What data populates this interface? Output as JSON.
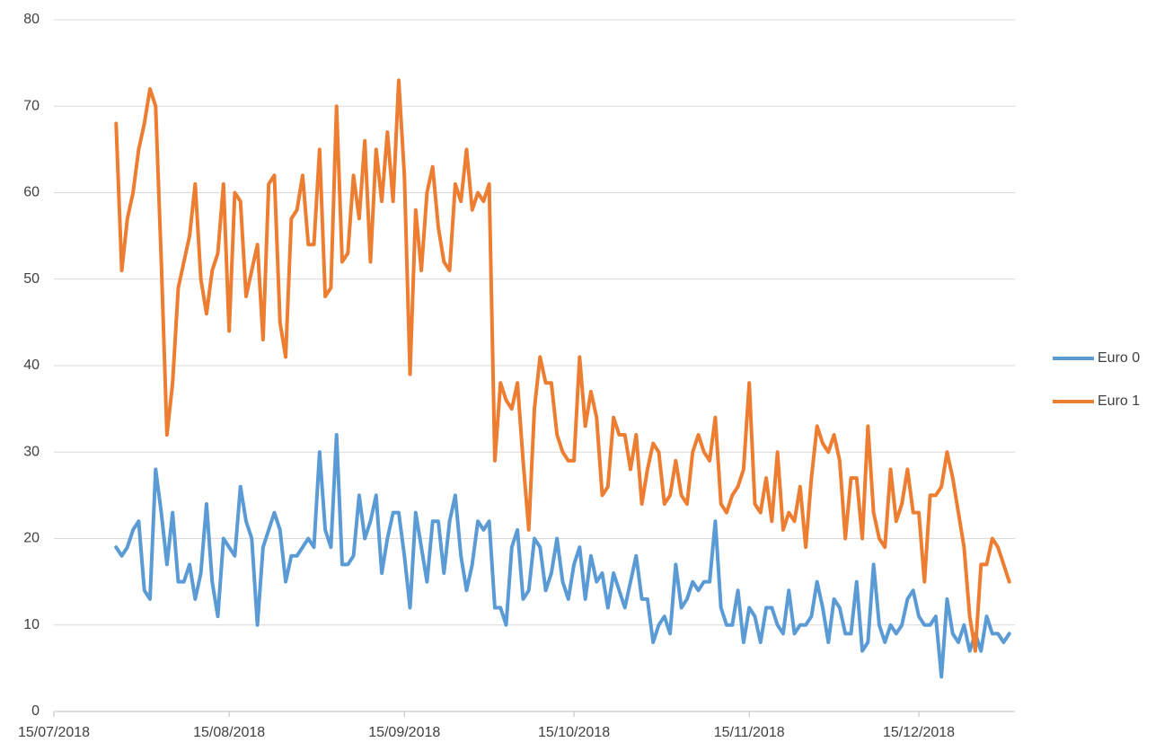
{
  "chart_data": {
    "type": "line",
    "x": [
      "2018-07-26",
      "2018-07-27",
      "2018-07-28",
      "2018-07-29",
      "2018-07-30",
      "2018-07-31",
      "2018-08-01",
      "2018-08-02",
      "2018-08-03",
      "2018-08-04",
      "2018-08-05",
      "2018-08-06",
      "2018-08-07",
      "2018-08-08",
      "2018-08-09",
      "2018-08-10",
      "2018-08-11",
      "2018-08-12",
      "2018-08-13",
      "2018-08-14",
      "2018-08-15",
      "2018-08-16",
      "2018-08-17",
      "2018-08-18",
      "2018-08-19",
      "2018-08-20",
      "2018-08-21",
      "2018-08-22",
      "2018-08-23",
      "2018-08-24",
      "2018-08-25",
      "2018-08-26",
      "2018-08-27",
      "2018-08-28",
      "2018-08-29",
      "2018-08-30",
      "2018-08-31",
      "2018-09-01",
      "2018-09-02",
      "2018-09-03",
      "2018-09-04",
      "2018-09-05",
      "2018-09-06",
      "2018-09-07",
      "2018-09-08",
      "2018-09-09",
      "2018-09-10",
      "2018-09-11",
      "2018-09-12",
      "2018-09-13",
      "2018-09-14",
      "2018-09-15",
      "2018-09-16",
      "2018-09-17",
      "2018-09-18",
      "2018-09-19",
      "2018-09-20",
      "2018-09-21",
      "2018-09-22",
      "2018-09-23",
      "2018-09-24",
      "2018-09-25",
      "2018-09-26",
      "2018-09-27",
      "2018-09-28",
      "2018-09-29",
      "2018-09-30",
      "2018-10-01",
      "2018-10-02",
      "2018-10-03",
      "2018-10-04",
      "2018-10-05",
      "2018-10-06",
      "2018-10-07",
      "2018-10-08",
      "2018-10-09",
      "2018-10-10",
      "2018-10-11",
      "2018-10-12",
      "2018-10-13",
      "2018-10-14",
      "2018-10-15",
      "2018-10-16",
      "2018-10-17",
      "2018-10-18",
      "2018-10-19",
      "2018-10-20",
      "2018-10-21",
      "2018-10-22",
      "2018-10-23",
      "2018-10-24",
      "2018-10-25",
      "2018-10-26",
      "2018-10-27",
      "2018-10-28",
      "2018-10-29",
      "2018-10-30",
      "2018-10-31",
      "2018-11-01",
      "2018-11-02",
      "2018-11-03",
      "2018-11-04",
      "2018-11-05",
      "2018-11-06",
      "2018-11-07",
      "2018-11-08",
      "2018-11-09",
      "2018-11-10",
      "2018-11-11",
      "2018-11-12",
      "2018-11-13",
      "2018-11-14",
      "2018-11-15",
      "2018-11-16",
      "2018-11-17",
      "2018-11-18",
      "2018-11-19",
      "2018-11-20",
      "2018-11-21",
      "2018-11-22",
      "2018-11-23",
      "2018-11-24",
      "2018-11-25",
      "2018-11-26",
      "2018-11-27",
      "2018-11-28",
      "2018-11-29",
      "2018-11-30",
      "2018-12-01",
      "2018-12-02",
      "2018-12-03",
      "2018-12-04",
      "2018-12-05",
      "2018-12-06",
      "2018-12-07",
      "2018-12-08",
      "2018-12-09",
      "2018-12-10",
      "2018-12-11",
      "2018-12-12",
      "2018-12-13",
      "2018-12-14",
      "2018-12-15",
      "2018-12-16",
      "2018-12-17",
      "2018-12-18",
      "2018-12-19",
      "2018-12-20",
      "2018-12-21",
      "2018-12-22",
      "2018-12-23",
      "2018-12-24",
      "2018-12-25",
      "2018-12-26",
      "2018-12-27",
      "2018-12-28",
      "2018-12-29",
      "2018-12-30",
      "2018-12-31"
    ],
    "series": [
      {
        "name": "Euro 0",
        "color": "#5b9bd5",
        "values": [
          19,
          18,
          19,
          21,
          22,
          14,
          13,
          28,
          23,
          17,
          23,
          15,
          15,
          17,
          13,
          16,
          24,
          15,
          11,
          20,
          19,
          18,
          26,
          22,
          20,
          10,
          19,
          21,
          23,
          21,
          15,
          18,
          18,
          19,
          20,
          19,
          30,
          21,
          19,
          32,
          17,
          17,
          18,
          25,
          20,
          22,
          25,
          16,
          20,
          23,
          23,
          18,
          12,
          23,
          19,
          15,
          22,
          22,
          16,
          22,
          25,
          18,
          14,
          17,
          22,
          21,
          22,
          12,
          12,
          10,
          19,
          21,
          13,
          14,
          20,
          19,
          14,
          16,
          20,
          15,
          13,
          17,
          19,
          13,
          18,
          15,
          16,
          12,
          16,
          14,
          12,
          15,
          18,
          13,
          13,
          8,
          10,
          11,
          9,
          17,
          12,
          13,
          15,
          14,
          15,
          15,
          22,
          12,
          10,
          10,
          14,
          8,
          12,
          11,
          8,
          12,
          12,
          10,
          9,
          14,
          9,
          10,
          10,
          11,
          15,
          12,
          8,
          13,
          12,
          9,
          9,
          15,
          7,
          8,
          17,
          10,
          8,
          10,
          9,
          10,
          13,
          14,
          11,
          10,
          10,
          11,
          4,
          13,
          9,
          8,
          10,
          7,
          9,
          7,
          11,
          9,
          9,
          8,
          9
        ]
      },
      {
        "name": "Euro 1",
        "color": "#ed7d31",
        "values": [
          68,
          51,
          57,
          60,
          65,
          68,
          72,
          70,
          52,
          32,
          38,
          49,
          52,
          55,
          61,
          50,
          46,
          51,
          53,
          61,
          44,
          60,
          59,
          48,
          51,
          54,
          43,
          61,
          62,
          45,
          41,
          57,
          58,
          62,
          54,
          54,
          65,
          48,
          49,
          70,
          52,
          53,
          62,
          57,
          66,
          52,
          65,
          59,
          67,
          59,
          73,
          62,
          39,
          58,
          51,
          60,
          63,
          56,
          52,
          51,
          61,
          59,
          65,
          58,
          60,
          59,
          61,
          29,
          38,
          36,
          35,
          38,
          29,
          21,
          35,
          41,
          38,
          38,
          32,
          30,
          29,
          29,
          41,
          33,
          37,
          34,
          25,
          26,
          34,
          32,
          32,
          28,
          32,
          24,
          28,
          31,
          30,
          24,
          25,
          29,
          25,
          24,
          30,
          32,
          30,
          29,
          34,
          24,
          23,
          25,
          26,
          28,
          38,
          24,
          23,
          27,
          22,
          30,
          21,
          23,
          22,
          26,
          19,
          27,
          33,
          31,
          30,
          32,
          29,
          20,
          27,
          27,
          20,
          33,
          23,
          20,
          19,
          28,
          22,
          24,
          28,
          23,
          23,
          15,
          25,
          25,
          26,
          30,
          27,
          23,
          19,
          11,
          7,
          17,
          17,
          20,
          19,
          17,
          15
        ]
      }
    ],
    "xlim": [
      "2018-07-15",
      "2019-01-01"
    ],
    "xticks": [
      {
        "value": "2018-07-15",
        "label": "15/07/2018"
      },
      {
        "value": "2018-08-15",
        "label": "15/08/2018"
      },
      {
        "value": "2018-09-15",
        "label": "15/09/2018"
      },
      {
        "value": "2018-10-15",
        "label": "15/10/2018"
      },
      {
        "value": "2018-11-15",
        "label": "15/11/2018"
      },
      {
        "value": "2018-12-15",
        "label": "15/12/2018"
      }
    ],
    "ylim": [
      0,
      80
    ],
    "yticks": [
      0,
      10,
      20,
      30,
      40,
      50,
      60,
      70,
      80
    ],
    "grid": true,
    "legend": "right"
  }
}
